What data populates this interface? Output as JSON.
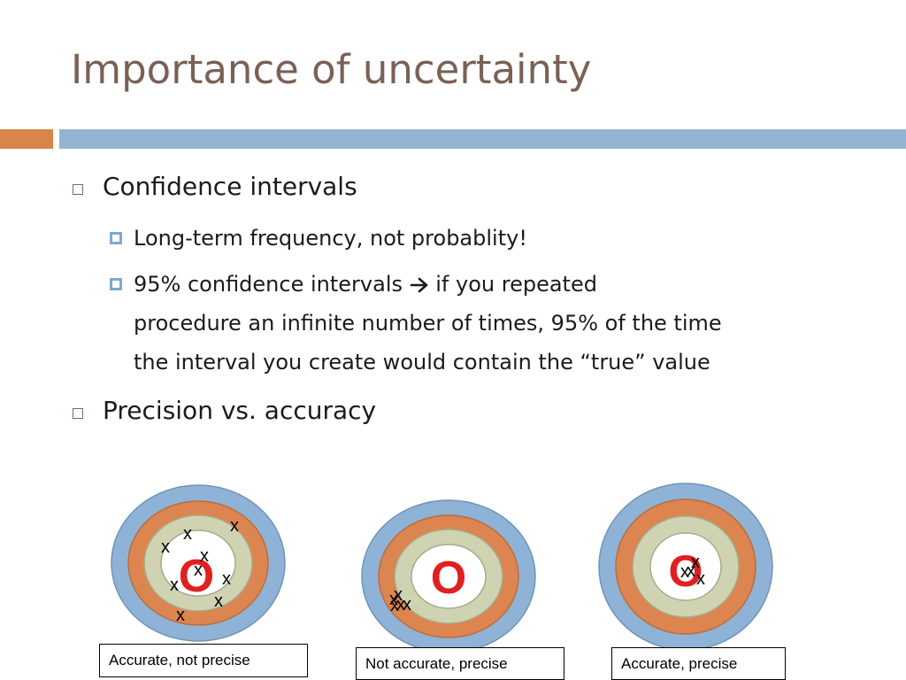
{
  "slide": {
    "title": "Importance of uncertainty",
    "bullets": [
      {
        "text": "Confidence intervals",
        "sub": [
          {
            "text": "Long-term frequency, not probablity!"
          },
          {
            "text_before_arrow": "95% confidence intervals",
            "lines_after_arrow": [
              " if you repeated",
              "procedure an infinite number of times, 95% of the time",
              "the interval you create would contain the “true” value"
            ]
          }
        ]
      },
      {
        "text": "Precision vs. accuracy"
      }
    ],
    "targets": [
      {
        "caption": "Accurate, not precise",
        "center_mark": "O",
        "hit_mark": "x"
      },
      {
        "caption": "Not accurate, precise",
        "center_mark": "O",
        "hit_mark": "x"
      },
      {
        "caption": "Accurate, precise",
        "center_mark": "O",
        "hit_mark": "x"
      }
    ],
    "colors": {
      "title": "#7a6155",
      "accent_orange": "#d9844a",
      "accent_blue": "#93b5d2",
      "ring_outer": "#8fb3d6",
      "ring_orange": "#dc8550",
      "ring_sage": "#cfd3b2",
      "ring_inner": "#ffffff",
      "bullseye": "#e02020"
    }
  }
}
